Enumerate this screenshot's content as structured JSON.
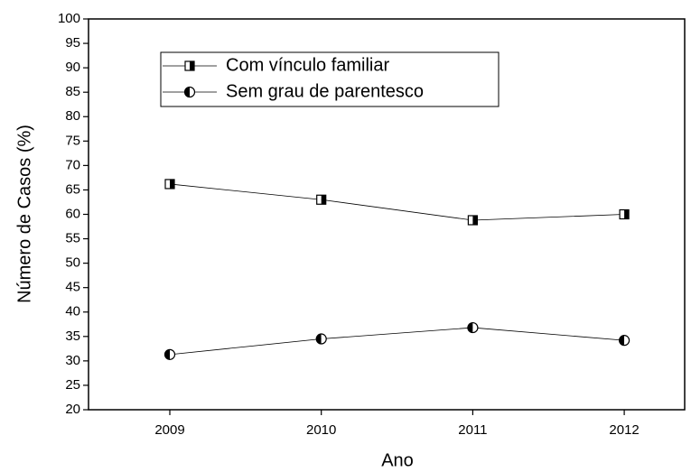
{
  "chart_data": {
    "type": "line",
    "xlabel": "Ano",
    "ylabel": "Número de Casos (%)",
    "categories": [
      "2009",
      "2010",
      "2011",
      "2012"
    ],
    "series": [
      {
        "name": "Com vínculo familiar",
        "color": "#000000",
        "marker": "square",
        "values": [
          66.2,
          63,
          58.8,
          60
        ]
      },
      {
        "name": "Sem grau de parentesco",
        "color": "#000000",
        "marker": "circle",
        "values": [
          31.3,
          34.5,
          36.8,
          34.2
        ]
      }
    ],
    "ylim": [
      20,
      100
    ],
    "yticks": [
      20,
      25,
      30,
      35,
      40,
      45,
      50,
      55,
      60,
      65,
      70,
      75,
      80,
      85,
      90,
      95,
      100
    ],
    "legend": "upper left"
  }
}
